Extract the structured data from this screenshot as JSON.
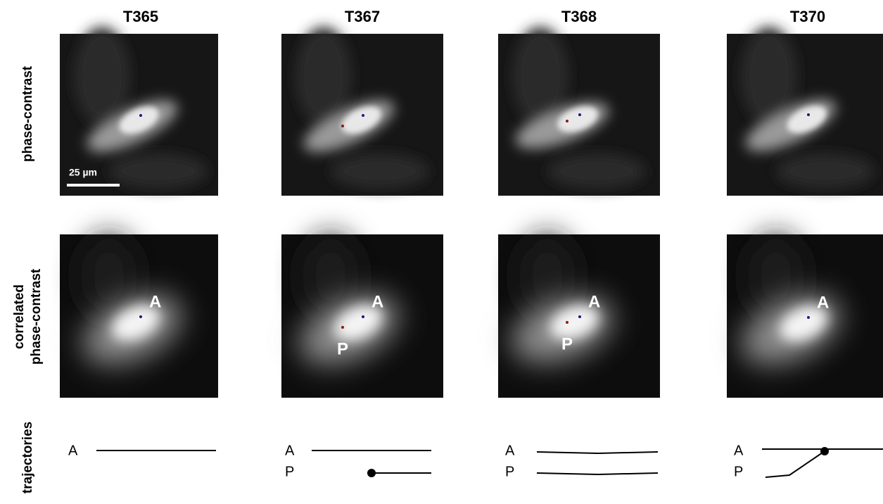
{
  "columns": [
    "T365",
    "T367",
    "T368",
    "T370"
  ],
  "row_labels": {
    "phase_contrast": "phase-contrast",
    "correlated": [
      "correlated",
      "phase-contrast"
    ],
    "trajectories": "trajectories"
  },
  "scale_bar": "25 µm",
  "panels": [
    {
      "image_labels": {
        "A": "A"
      },
      "trajectory_labels": [
        "A"
      ]
    },
    {
      "image_labels": {
        "A": "A",
        "P": "P"
      },
      "trajectory_labels": [
        "A",
        "P"
      ]
    },
    {
      "image_labels": {
        "A": "A",
        "P": "P"
      },
      "trajectory_labels": [
        "A",
        "P"
      ]
    },
    {
      "image_labels": {
        "A": "A"
      },
      "trajectory_labels": [
        "A",
        "P"
      ]
    }
  ]
}
